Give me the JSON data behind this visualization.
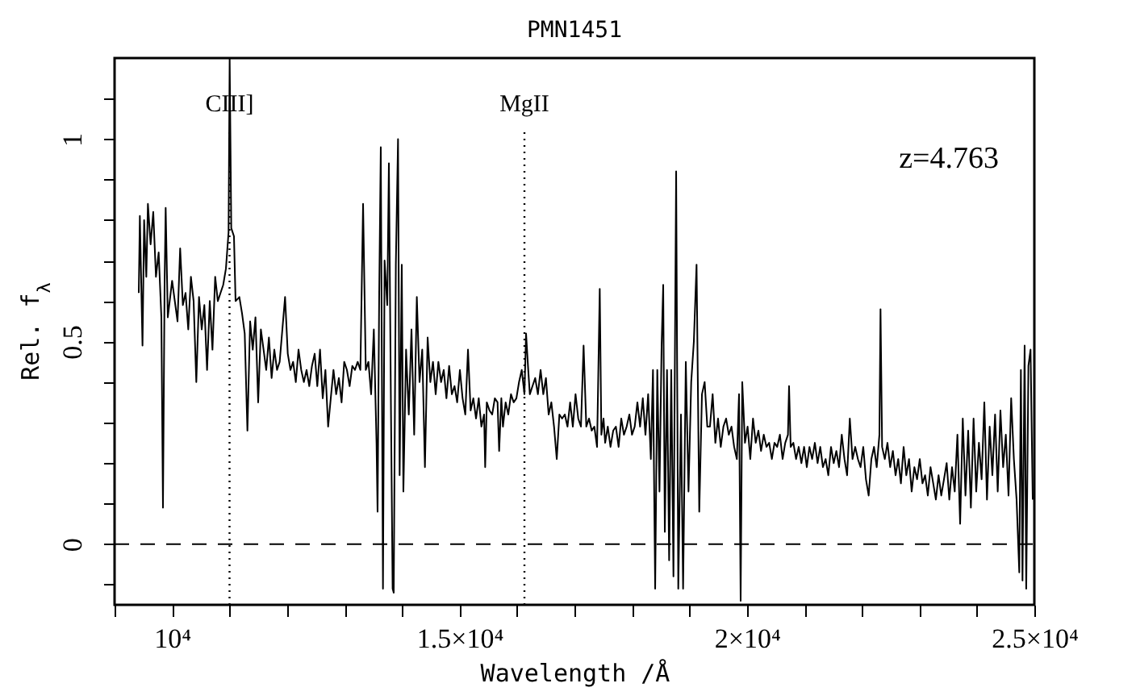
{
  "chart_data": {
    "type": "line",
    "title": "PMN1451",
    "xlabel": "Wavelength /Å",
    "ylabel": "Rel. f$_{λ}$",
    "xlim": [
      9000,
      25000
    ],
    "ylim": [
      -0.15,
      1.2
    ],
    "xticks": [
      {
        "value": 9000,
        "label": null
      },
      {
        "value": 10000,
        "label": "10⁴"
      },
      {
        "value": 11000,
        "label": null
      },
      {
        "value": 12000,
        "label": null
      },
      {
        "value": 13000,
        "label": null
      },
      {
        "value": 14000,
        "label": null
      },
      {
        "value": 15000,
        "label": "1.5×10⁴"
      },
      {
        "value": 16000,
        "label": null
      },
      {
        "value": 17000,
        "label": null
      },
      {
        "value": 18000,
        "label": null
      },
      {
        "value": 19000,
        "label": null
      },
      {
        "value": 20000,
        "label": "2×10⁴"
      },
      {
        "value": 21000,
        "label": null
      },
      {
        "value": 22000,
        "label": null
      },
      {
        "value": 23000,
        "label": null
      },
      {
        "value": 24000,
        "label": null
      },
      {
        "value": 25000,
        "label": "2.5×10⁴"
      }
    ],
    "yticks": [
      {
        "value": -0.1,
        "label": null
      },
      0,
      {
        "value": 0.1,
        "label": null
      },
      {
        "value": 0.2,
        "label": null
      },
      {
        "value": 0.3,
        "label": null
      },
      {
        "value": 0.4,
        "label": null
      },
      0.5,
      {
        "value": 0.6,
        "label": null
      },
      {
        "value": 0.7,
        "label": null
      },
      {
        "value": 0.8,
        "label": null
      },
      {
        "value": 0.9,
        "label": null
      },
      1,
      {
        "value": 1.1,
        "label": null
      }
    ],
    "ref_lines": [
      {
        "axis": "x",
        "value": 11000,
        "label": "CIII]",
        "line_style": "dotted"
      },
      {
        "axis": "x",
        "value": 16130,
        "label": "MgII",
        "line_style": "dotted"
      },
      {
        "axis": "y",
        "value": 0,
        "line_style": "dashed"
      }
    ],
    "annotations": [
      "z=4.763"
    ],
    "series": [
      {
        "color": "#000000",
        "x": [
          9421,
          9440,
          9486,
          9514,
          9552,
          9580,
          9627,
          9673,
          9720,
          9767,
          9814,
          9842,
          9870,
          9889,
          9926,
          10001,
          10048,
          10095,
          10141,
          10188,
          10235,
          10282,
          10328,
          10375,
          10422,
          10469,
          10516,
          10562,
          10609,
          10656,
          10703,
          10750,
          10796,
          10843,
          10890,
          10937,
          10983,
          11002,
          11030,
          11077,
          11105,
          11171,
          11217,
          11264,
          11311,
          11358,
          11404,
          11451,
          11498,
          11545,
          11592,
          11638,
          11685,
          11732,
          11779,
          11826,
          11872,
          11919,
          11966,
          12013,
          12060,
          12106,
          12153,
          12200,
          12247,
          12293,
          12340,
          12387,
          12434,
          12481,
          12527,
          12574,
          12621,
          12668,
          12715,
          12761,
          12808,
          12855,
          12902,
          12949,
          12995,
          13042,
          13089,
          13136,
          13182,
          13229,
          13276,
          13323,
          13370,
          13416,
          13463,
          13510,
          13557,
          13575,
          13603,
          13631,
          13669,
          13697,
          13744,
          13772,
          13809,
          13837,
          13856,
          13893,
          13931,
          13959,
          13996,
          14024,
          14071,
          14118,
          14165,
          14212,
          14258,
          14305,
          14352,
          14399,
          14446,
          14493,
          14539,
          14586,
          14633,
          14680,
          14726,
          14773,
          14820,
          14867,
          14914,
          14960,
          15007,
          15054,
          15101,
          15148,
          15194,
          15241,
          15288,
          15335,
          15381,
          15428,
          15447,
          15475,
          15522,
          15569,
          15615,
          15662,
          15690,
          15728,
          15756,
          15803,
          15849,
          15896,
          15943,
          15990,
          16036,
          16083,
          16130,
          16158,
          16196,
          16224,
          16270,
          16317,
          16364,
          16411,
          16458,
          16504,
          16551,
          16598,
          16645,
          16692,
          16738,
          16785,
          16832,
          16879,
          16925,
          16972,
          17019,
          17066,
          17113,
          17159,
          17206,
          17253,
          17300,
          17346,
          17393,
          17440,
          17468,
          17506,
          17534,
          17580,
          17627,
          17674,
          17721,
          17768,
          17814,
          17861,
          17908,
          17955,
          18001,
          18048,
          18095,
          18142,
          18189,
          18235,
          18282,
          18329,
          18366,
          18404,
          18441,
          18479,
          18516,
          18544,
          18572,
          18610,
          18647,
          18684,
          18722,
          18769,
          18806,
          18853,
          18890,
          18937,
          18984,
          19031,
          19077,
          19124,
          19171,
          19218,
          19265,
          19311,
          19357,
          19404,
          19451,
          19498,
          19545,
          19591,
          19638,
          19685,
          19732,
          19778,
          19825,
          19863,
          19891,
          19919,
          19966,
          20012,
          20059,
          20106,
          20153,
          20200,
          20246,
          20293,
          20340,
          20387,
          20434,
          20480,
          20527,
          20574,
          20621,
          20667,
          20714,
          20733,
          20761,
          20808,
          20855,
          20901,
          20948,
          20995,
          21042,
          21088,
          21135,
          21182,
          21229,
          21276,
          21322,
          21369,
          21416,
          21463,
          21510,
          21556,
          21603,
          21650,
          21697,
          21743,
          21790,
          21837,
          21884,
          21931,
          21977,
          22024,
          22071,
          22118,
          22165,
          22211,
          22258,
          22305,
          22324,
          22352,
          22399,
          22445,
          22492,
          22539,
          22586,
          22632,
          22679,
          22726,
          22773,
          22820,
          22866,
          22913,
          22960,
          23007,
          23054,
          23100,
          23147,
          23194,
          23241,
          23287,
          23334,
          23381,
          23428,
          23475,
          23521,
          23568,
          23615,
          23662,
          23709,
          23755,
          23802,
          23849,
          23896,
          23943,
          23989,
          24036,
          24083,
          24130,
          24176,
          24223,
          24270,
          24317,
          24363,
          24410,
          24457,
          24504,
          24551,
          24597,
          24644,
          24691,
          24738,
          24766,
          24794,
          24831,
          24859,
          24897,
          24934,
          24972
        ],
        "values": [
          0.62,
          0.81,
          0.49,
          0.8,
          0.66,
          0.84,
          0.74,
          0.82,
          0.66,
          0.72,
          0.56,
          0.09,
          0.64,
          0.83,
          0.56,
          0.65,
          0.6,
          0.55,
          0.73,
          0.59,
          0.62,
          0.53,
          0.66,
          0.6,
          0.4,
          0.61,
          0.53,
          0.59,
          0.43,
          0.6,
          0.48,
          0.66,
          0.6,
          0.62,
          0.64,
          0.68,
          0.77,
          1.2,
          0.78,
          0.76,
          0.6,
          0.61,
          0.57,
          0.52,
          0.28,
          0.55,
          0.48,
          0.56,
          0.35,
          0.53,
          0.48,
          0.43,
          0.51,
          0.41,
          0.48,
          0.43,
          0.45,
          0.53,
          0.61,
          0.47,
          0.43,
          0.45,
          0.4,
          0.48,
          0.43,
          0.4,
          0.43,
          0.39,
          0.44,
          0.47,
          0.39,
          0.48,
          0.36,
          0.43,
          0.29,
          0.36,
          0.43,
          0.37,
          0.41,
          0.35,
          0.45,
          0.43,
          0.39,
          0.44,
          0.43,
          0.45,
          0.43,
          0.84,
          0.43,
          0.45,
          0.37,
          0.53,
          0.25,
          0.08,
          0.61,
          0.98,
          -0.11,
          0.7,
          0.59,
          0.94,
          0.32,
          -0.11,
          -0.12,
          0.69,
          1.0,
          0.17,
          0.69,
          0.13,
          0.48,
          0.32,
          0.53,
          0.27,
          0.61,
          0.4,
          0.48,
          0.19,
          0.51,
          0.4,
          0.45,
          0.37,
          0.45,
          0.4,
          0.43,
          0.36,
          0.44,
          0.37,
          0.39,
          0.35,
          0.43,
          0.36,
          0.32,
          0.48,
          0.33,
          0.36,
          0.31,
          0.36,
          0.29,
          0.32,
          0.19,
          0.35,
          0.33,
          0.32,
          0.36,
          0.35,
          0.23,
          0.36,
          0.29,
          0.35,
          0.32,
          0.37,
          0.35,
          0.36,
          0.4,
          0.43,
          0.37,
          0.52,
          0.43,
          0.37,
          0.39,
          0.41,
          0.37,
          0.43,
          0.37,
          0.41,
          0.32,
          0.35,
          0.29,
          0.21,
          0.32,
          0.31,
          0.32,
          0.29,
          0.35,
          0.29,
          0.37,
          0.31,
          0.29,
          0.49,
          0.29,
          0.31,
          0.28,
          0.29,
          0.24,
          0.63,
          0.27,
          0.31,
          0.25,
          0.29,
          0.24,
          0.28,
          0.29,
          0.24,
          0.31,
          0.27,
          0.29,
          0.32,
          0.27,
          0.29,
          0.35,
          0.29,
          0.36,
          0.27,
          0.37,
          0.21,
          0.43,
          -0.11,
          0.43,
          0.13,
          0.49,
          0.64,
          0.03,
          0.43,
          -0.04,
          0.43,
          -0.08,
          0.92,
          -0.11,
          0.32,
          -0.11,
          0.45,
          0.13,
          0.4,
          0.5,
          0.69,
          0.08,
          0.37,
          0.4,
          0.29,
          0.29,
          0.37,
          0.25,
          0.31,
          0.24,
          0.29,
          0.31,
          0.27,
          0.29,
          0.24,
          0.21,
          0.37,
          -0.14,
          0.4,
          0.25,
          0.29,
          0.21,
          0.31,
          0.25,
          0.28,
          0.23,
          0.27,
          0.24,
          0.25,
          0.21,
          0.25,
          0.24,
          0.27,
          0.21,
          0.25,
          0.27,
          0.39,
          0.24,
          0.25,
          0.21,
          0.24,
          0.2,
          0.24,
          0.19,
          0.24,
          0.21,
          0.25,
          0.2,
          0.24,
          0.19,
          0.21,
          0.17,
          0.24,
          0.2,
          0.23,
          0.19,
          0.27,
          0.21,
          0.17,
          0.31,
          0.21,
          0.24,
          0.21,
          0.19,
          0.24,
          0.16,
          0.12,
          0.21,
          0.24,
          0.19,
          0.27,
          0.58,
          0.24,
          0.21,
          0.25,
          0.19,
          0.23,
          0.17,
          0.21,
          0.15,
          0.24,
          0.17,
          0.21,
          0.13,
          0.19,
          0.16,
          0.21,
          0.15,
          0.17,
          0.12,
          0.19,
          0.15,
          0.11,
          0.17,
          0.12,
          0.16,
          0.2,
          0.11,
          0.19,
          0.13,
          0.27,
          0.05,
          0.31,
          0.12,
          0.28,
          0.09,
          0.31,
          0.13,
          0.25,
          0.16,
          0.35,
          0.11,
          0.29,
          0.17,
          0.32,
          0.13,
          0.33,
          0.19,
          0.27,
          0.12,
          0.36,
          0.21,
          0.11,
          -0.07,
          0.43,
          -0.09,
          0.49,
          -0.11,
          0.44,
          0.48,
          0.11
        ]
      }
    ]
  }
}
